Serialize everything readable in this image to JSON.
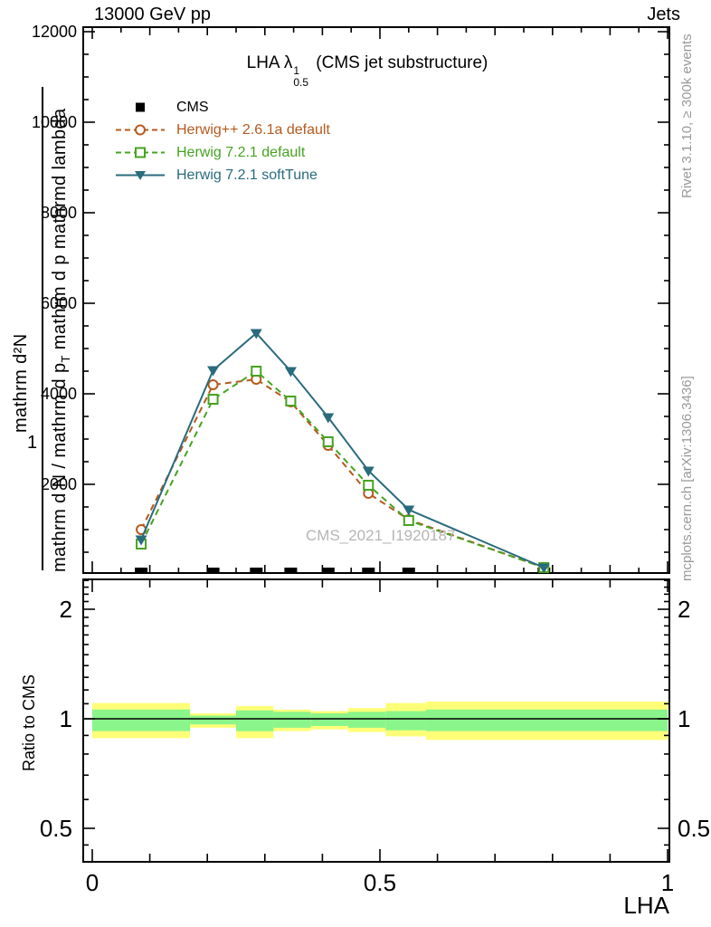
{
  "header": {
    "left": "13000 GeV pp",
    "right": "Jets"
  },
  "title": {
    "prefix": "LHA ",
    "lambda": "λ",
    "sup": "1",
    "sub": "0.5",
    "suffix": " (CMS jet substructure)"
  },
  "legend": {
    "items": [
      {
        "label": "CMS",
        "marker": "filled-square",
        "color_key": "cms"
      },
      {
        "label": "Herwig++ 2.6.1a default",
        "marker": "open-circle",
        "line": "dashed",
        "color_key": "hpp"
      },
      {
        "label": "Herwig 7.2.1 default",
        "marker": "open-square",
        "line": "dashed",
        "color_key": "h7"
      },
      {
        "label": "Herwig 7.2.1 softTune",
        "marker": "filled-triangle-down",
        "line": "solid",
        "color_key": "st"
      }
    ]
  },
  "colors": {
    "cms": "#000000",
    "hpp": "#b45a1d",
    "h7": "#46a321",
    "st": "#2a6b7d",
    "band_yellow": "#ffff78",
    "band_green": "#8af58a",
    "frame": "#000000",
    "margin_text": "#999999",
    "watermark": "#b5b5b5"
  },
  "y_axis_title": {
    "numerator": "mathrm d²N",
    "one": "1",
    "denominator_parts": [
      "mathrm d N / mathrm d p",
      "T",
      " mathrm d p mathrmd lambda"
    ]
  },
  "ratio_panel": {
    "ylabel": "Ratio to CMS"
  },
  "x_axis": {
    "label": "LHA"
  },
  "margin_labels": {
    "right_top": "Rivet 3.1.10, ≥ 300k events",
    "right_bottom": "mcplots.cern.ch [arXiv:1306.3436]"
  },
  "watermark": "CMS_2021_I1920187",
  "chart_data": {
    "type": "line",
    "title": "LHA lambda^1_0.5 (CMS jet substructure)",
    "xlabel": "LHA",
    "ylabel": "mathrm d²N / mathrm d N mathrm d p_T mathrm d lambda",
    "xlim": [
      -0.016,
      1.003
    ],
    "ylim": [
      0,
      12100
    ],
    "grid": false,
    "legend_position": "top-left",
    "y_tick_labels": [
      {
        "label": "2000",
        "value": 2000
      },
      {
        "label": "4000",
        "value": 4000
      },
      {
        "label": "6000",
        "value": 6000
      },
      {
        "label": "8000",
        "value": 8000
      },
      {
        "label": "10000",
        "value": 10000
      },
      {
        "label": "12000",
        "value": 12000
      }
    ],
    "x": [
      0.085,
      0.21,
      0.285,
      0.345,
      0.41,
      0.48,
      0.55,
      0.785
    ],
    "series": [
      {
        "name": "CMS",
        "style": "bar-markers",
        "color_key": "cms",
        "values": [
          140,
          140,
          140,
          140,
          140,
          140,
          140,
          140
        ]
      },
      {
        "name": "Herwig++ 2.6.1a default",
        "style": "dashed",
        "marker": "open-circle",
        "color_key": "hpp",
        "values": [
          1000,
          4200,
          4320,
          3820,
          2860,
          1800,
          1220,
          160
        ]
      },
      {
        "name": "Herwig 7.2.1 default",
        "style": "dashed",
        "marker": "open-square",
        "color_key": "h7",
        "values": [
          680,
          3880,
          4500,
          3840,
          2940,
          1980,
          1200,
          160
        ]
      },
      {
        "name": "Herwig 7.2.1 softTune",
        "style": "solid",
        "marker": "filled-triangle-down",
        "color_key": "st",
        "values": [
          780,
          4520,
          5340,
          4500,
          3480,
          2300,
          1440,
          160
        ]
      }
    ],
    "xticks": [
      {
        "label": "0",
        "value": 0
      },
      {
        "label": "0.5",
        "value": 0.5
      },
      {
        "label": "1",
        "value": 1
      }
    ],
    "ratio": {
      "scale": "log",
      "ylim": [
        0.405,
        2.42
      ],
      "ytick_labels": [
        {
          "label": "2",
          "value": 2
        },
        {
          "label": "1",
          "value": 1
        },
        {
          "label": "0.5",
          "value": 0.5
        }
      ],
      "reference_line": 1,
      "bin_edges": [
        0.0,
        0.17,
        0.25,
        0.315,
        0.38,
        0.445,
        0.51,
        0.58,
        1.0
      ],
      "yellow_lo": [
        0.885,
        0.945,
        0.885,
        0.925,
        0.935,
        0.92,
        0.895,
        0.875
      ],
      "yellow_hi": [
        1.105,
        1.035,
        1.085,
        1.06,
        1.05,
        1.07,
        1.105,
        1.115
      ],
      "green_lo": [
        0.925,
        0.965,
        0.925,
        0.945,
        0.955,
        0.945,
        0.93,
        0.925
      ],
      "green_hi": [
        1.06,
        1.02,
        1.055,
        1.045,
        1.035,
        1.045,
        1.05,
        1.06
      ]
    }
  }
}
